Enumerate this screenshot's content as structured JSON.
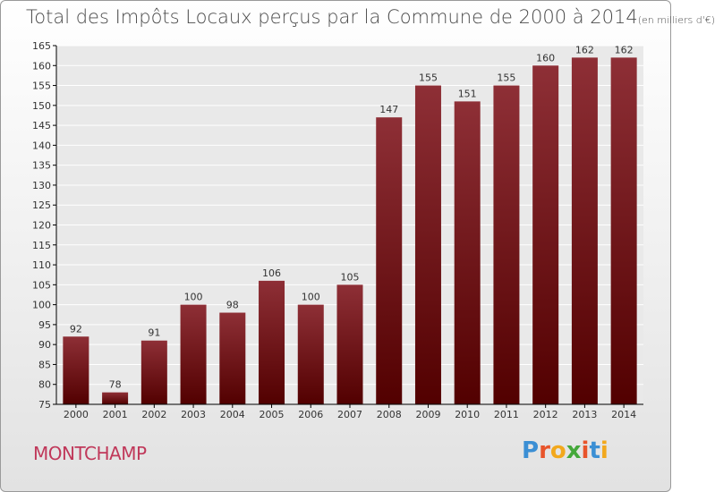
{
  "title": "Total des Impôts Locaux perçus par la Commune de 2000 à 2014",
  "title_unit": "(en milliers d'€)",
  "commune": "MONTCHAMP",
  "logo": {
    "text": "Proxiti",
    "letters": [
      "P",
      "r",
      "o",
      "x",
      "i",
      "t",
      "i"
    ],
    "colors": [
      "#3b8fd4",
      "#e8542b",
      "#f2a81d",
      "#44a83a",
      "#e8542b",
      "#3b8fd4",
      "#f2a81d"
    ]
  },
  "colors": {
    "bar_top": "#8e2f36",
    "bar_bottom": "#520000",
    "grid": "#ffffff",
    "axis": "#000000",
    "text": "#333333",
    "commune": "#c0385a"
  },
  "chart_data": {
    "type": "bar",
    "title": "Total des Impôts Locaux perçus par la Commune de 2000 à 2014 (en milliers d'€)",
    "categories": [
      "2000",
      "2001",
      "2002",
      "2003",
      "2004",
      "2005",
      "2006",
      "2007",
      "2008",
      "2009",
      "2010",
      "2011",
      "2012",
      "2013",
      "2014"
    ],
    "values": [
      92,
      78,
      91,
      100,
      98,
      106,
      100,
      105,
      147,
      155,
      151,
      155,
      160,
      162,
      162
    ],
    "ylim": [
      75,
      165
    ],
    "yticks": [
      75,
      80,
      85,
      90,
      95,
      100,
      105,
      110,
      115,
      120,
      125,
      130,
      135,
      140,
      145,
      150,
      155,
      160,
      165
    ],
    "xlabel": "",
    "ylabel": "",
    "grid": true
  }
}
